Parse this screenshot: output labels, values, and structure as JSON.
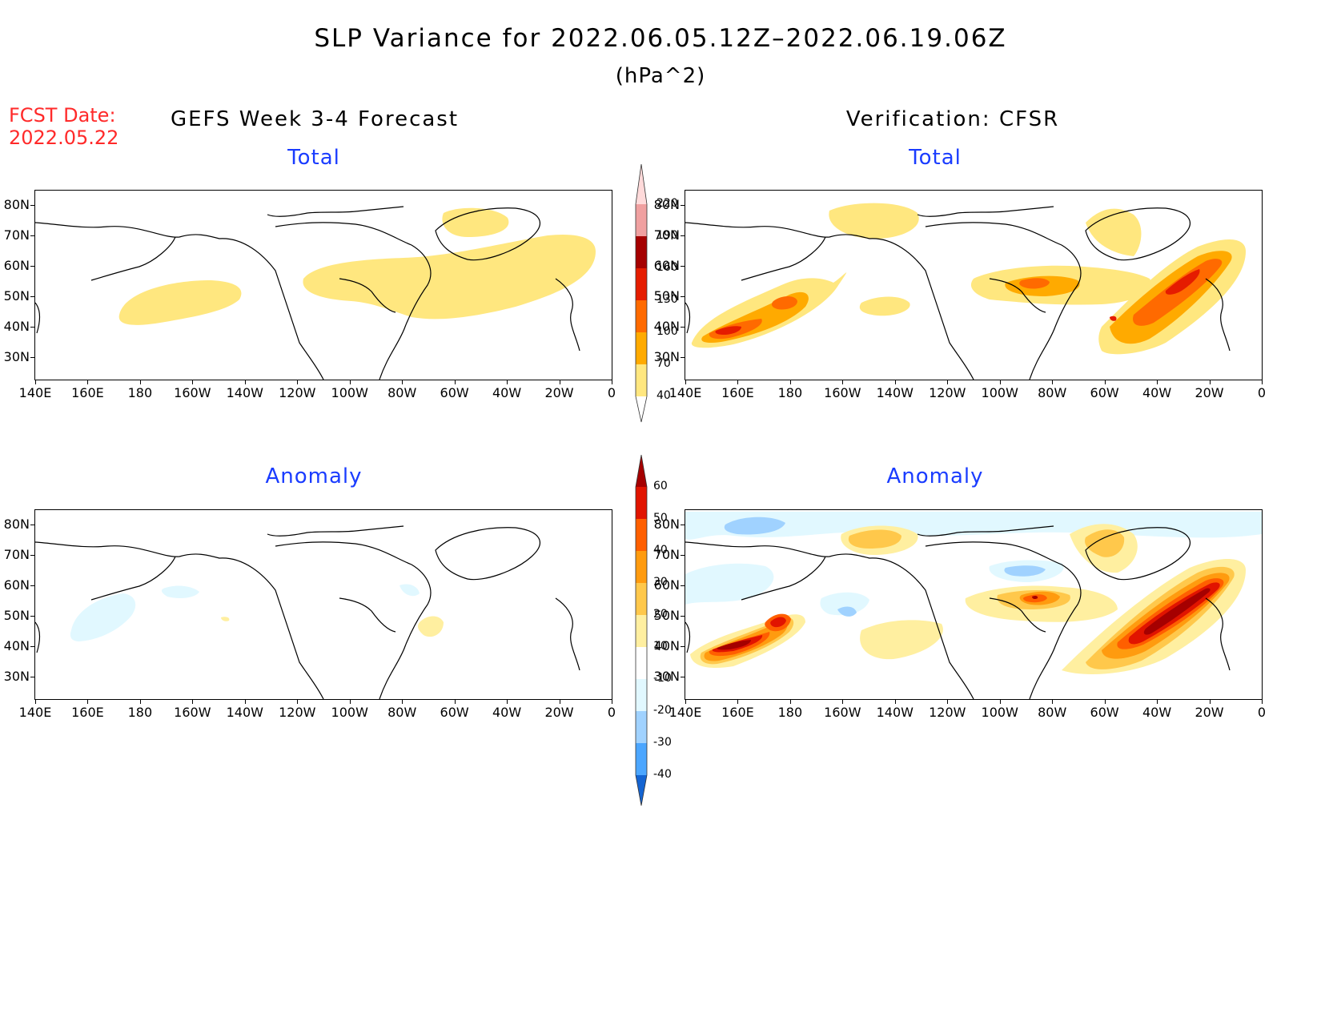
{
  "title": "SLP Variance for 2022.06.05.12Z–2022.06.19.06Z",
  "units": "(hPa^2)",
  "fcst_date": {
    "label": "FCST Date:",
    "value": "2022.05.22"
  },
  "columns": {
    "left": "GEFS Week 3-4 Forecast",
    "right": "Verification: CFSR"
  },
  "panels": [
    {
      "title": "Total"
    },
    {
      "title": "Total"
    },
    {
      "title": "Anomaly"
    },
    {
      "title": "Anomaly"
    }
  ],
  "axes": {
    "lat_ticks": [
      "80N",
      "70N",
      "60N",
      "50N",
      "40N",
      "30N"
    ],
    "lon_ticks": [
      "140E",
      "160E",
      "180",
      "160W",
      "140W",
      "120W",
      "100W",
      "80W",
      "60W",
      "40W",
      "20W",
      "0"
    ]
  },
  "colorbar_total": {
    "levels": [
      "40",
      "70",
      "100",
      "130",
      "160",
      "190",
      "220"
    ],
    "colors": [
      "#ffe77f",
      "#ffaa00",
      "#ff6a00",
      "#e51c00",
      "#a50000",
      "#f0a0a0",
      "#ffdada"
    ]
  },
  "colorbar_anomaly": {
    "levels": [
      "-40",
      "-30",
      "-20",
      "-10",
      "10",
      "20",
      "30",
      "40",
      "50",
      "60"
    ],
    "colors": [
      "#1464d2",
      "#4ba6ff",
      "#a0d2ff",
      "#e1f8ff",
      "#ffffff",
      "#ffefa0",
      "#ffc84b",
      "#ff9b0f",
      "#ff5f00",
      "#e11400",
      "#a50000"
    ]
  }
}
